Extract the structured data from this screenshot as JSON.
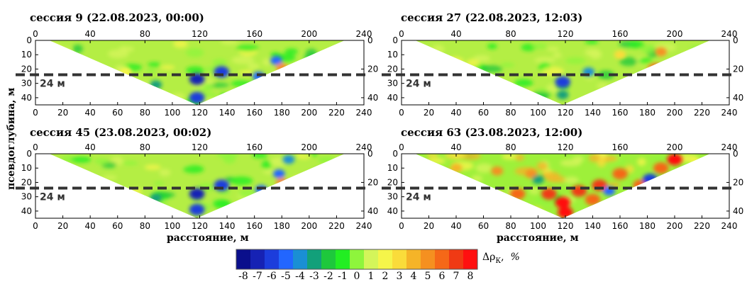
{
  "chart_data": {
    "type": "heatmap",
    "ylabel": "псевдоглубина, м",
    "xlabel": "расстояние, м",
    "x_ticks": [
      0,
      20,
      40,
      60,
      80,
      100,
      120,
      140,
      160,
      180,
      200,
      220,
      240
    ],
    "x_top_ticks": [
      0,
      40,
      80,
      120,
      160,
      200,
      240
    ],
    "y_ticks": [
      0,
      10,
      20,
      30,
      40
    ],
    "y_right_ticks": [
      0,
      20,
      40
    ],
    "xlim": [
      0,
      240
    ],
    "ylim": [
      0,
      45
    ],
    "grid": false,
    "reference_line": {
      "depth": 24,
      "label": "24 м",
      "style": "dashed"
    },
    "colorbar": {
      "label": "Δρ",
      "label_sub": "К",
      "label_unit": "%",
      "ticks": [
        "-8",
        "-7",
        "-6",
        "-5",
        "-4",
        "-3",
        "-2",
        "-1",
        "0",
        "1",
        "2",
        "3",
        "4",
        "5",
        "6",
        "7",
        "8"
      ],
      "colors": [
        "#0a0f8c",
        "#1622b4",
        "#1c3ddc",
        "#2266ff",
        "#1a8fd4",
        "#12a07a",
        "#1ec83c",
        "#22ee22",
        "#8ef53c",
        "#d4f55a",
        "#f5f54a",
        "#fadc3a",
        "#f5b428",
        "#f59020",
        "#f56818",
        "#f03a14",
        "#ff1010"
      ],
      "position": "bottom"
    },
    "panels": [
      {
        "title": "сессия 9 (22.08.2023, 00:00)",
        "x_range_m": [
          10,
          226
        ],
        "apex": [
          118,
          45
        ],
        "anomalies": [
          {
            "x": 118,
            "z": 27,
            "value": -7
          },
          {
            "x": 118,
            "z": 40,
            "value": -6
          },
          {
            "x": 136,
            "z": 22,
            "value": -6
          },
          {
            "x": 163,
            "z": 25,
            "value": -5
          },
          {
            "x": 176,
            "z": 14,
            "value": -5
          },
          {
            "x": 88,
            "z": 31,
            "value": -3
          },
          {
            "x": 180,
            "z": 19,
            "value": 5
          },
          {
            "x": 66,
            "z": 22,
            "value": 2
          }
        ]
      },
      {
        "title": "сессия 27 (22.08.2023, 12:03)",
        "x_range_m": [
          10,
          226
        ],
        "apex": [
          118,
          45
        ],
        "anomalies": [
          {
            "x": 118,
            "z": 29,
            "value": -6
          },
          {
            "x": 137,
            "z": 22,
            "value": -4
          },
          {
            "x": 118,
            "z": 38,
            "value": -3
          },
          {
            "x": 186,
            "z": 20,
            "value": 6
          },
          {
            "x": 190,
            "z": 8,
            "value": 5
          },
          {
            "x": 160,
            "z": 10,
            "value": 3
          }
        ]
      },
      {
        "title": "сессия 45 (23.08.2023, 00:02)",
        "x_range_m": [
          10,
          226
        ],
        "apex": [
          118,
          45
        ],
        "anomalies": [
          {
            "x": 118,
            "z": 28,
            "value": -7
          },
          {
            "x": 118,
            "z": 39,
            "value": -6
          },
          {
            "x": 136,
            "z": 22,
            "value": -6
          },
          {
            "x": 165,
            "z": 25,
            "value": -5
          },
          {
            "x": 178,
            "z": 14,
            "value": -5
          },
          {
            "x": 185,
            "z": 4,
            "value": -4
          },
          {
            "x": 180,
            "z": 20,
            "value": 5
          },
          {
            "x": 88,
            "z": 31,
            "value": -3
          }
        ]
      },
      {
        "title": "сессия 63 (23.08.2023, 12:00)",
        "x_range_m": [
          10,
          226
        ],
        "apex": [
          118,
          45
        ],
        "anomalies": [
          {
            "x": 118,
            "z": 34,
            "value": 8
          },
          {
            "x": 120,
            "z": 41,
            "value": 8
          },
          {
            "x": 108,
            "z": 28,
            "value": 7
          },
          {
            "x": 130,
            "z": 26,
            "value": 7
          },
          {
            "x": 145,
            "z": 22,
            "value": 7
          },
          {
            "x": 160,
            "z": 14,
            "value": 6
          },
          {
            "x": 175,
            "z": 22,
            "value": 6
          },
          {
            "x": 85,
            "z": 28,
            "value": 6
          },
          {
            "x": 70,
            "z": 12,
            "value": 5
          },
          {
            "x": 40,
            "z": 10,
            "value": 4
          },
          {
            "x": 95,
            "z": 14,
            "value": 5
          },
          {
            "x": 200,
            "z": 4,
            "value": 8
          },
          {
            "x": 190,
            "z": 10,
            "value": 6
          },
          {
            "x": 182,
            "z": 18,
            "value": -6
          },
          {
            "x": 152,
            "z": 26,
            "value": -5
          },
          {
            "x": 100,
            "z": 18,
            "value": -3
          },
          {
            "x": 140,
            "z": 32,
            "value": 6
          }
        ]
      }
    ]
  }
}
